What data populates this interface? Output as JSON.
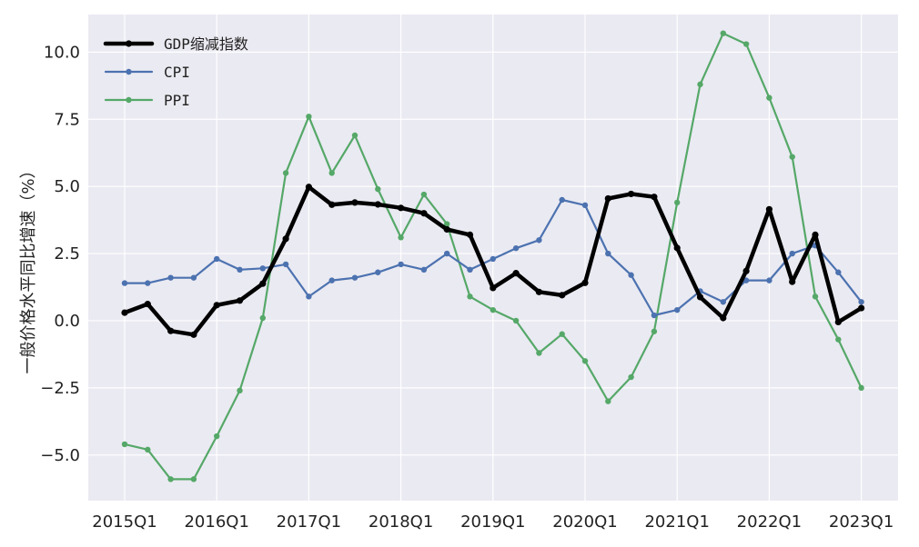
{
  "chart_data": {
    "type": "line",
    "title": "",
    "xlabel": "",
    "ylabel": "一般价格水平同比增速（%）",
    "x": [
      "2015Q1",
      "2015Q2",
      "2015Q3",
      "2015Q4",
      "2016Q1",
      "2016Q2",
      "2016Q3",
      "2016Q4",
      "2017Q1",
      "2017Q2",
      "2017Q3",
      "2017Q4",
      "2018Q1",
      "2018Q2",
      "2018Q3",
      "2018Q4",
      "2019Q1",
      "2019Q2",
      "2019Q3",
      "2019Q4",
      "2020Q1",
      "2020Q2",
      "2020Q3",
      "2020Q4",
      "2021Q1",
      "2021Q2",
      "2021Q3",
      "2021Q4",
      "2022Q1",
      "2022Q2",
      "2022Q3",
      "2022Q4",
      "2023Q1"
    ],
    "x_tick_labels": [
      "2015Q1",
      "2016Q1",
      "2017Q1",
      "2018Q1",
      "2019Q1",
      "2020Q1",
      "2021Q1",
      "2022Q1",
      "2023Q1"
    ],
    "ylim": [
      -6.7,
      11.4
    ],
    "y_ticks": [
      -5.0,
      -2.5,
      0.0,
      2.5,
      5.0,
      7.5,
      10.0
    ],
    "y_tick_labels": [
      "−5.0",
      "−2.5",
      "0.0",
      "2.5",
      "5.0",
      "7.5",
      "10.0"
    ],
    "grid": true,
    "legend_position": "top-left",
    "series": [
      {
        "name": "GDP缩减指数",
        "color": "#000000",
        "values": [
          0.3,
          0.62,
          -0.38,
          -0.52,
          0.58,
          0.75,
          1.38,
          3.05,
          4.98,
          4.32,
          4.4,
          4.33,
          4.2,
          4.0,
          3.4,
          3.2,
          1.22,
          1.77,
          1.07,
          0.95,
          1.41,
          4.55,
          4.72,
          4.61,
          2.71,
          0.88,
          0.1,
          1.85,
          4.15,
          1.45,
          3.2,
          -0.05,
          0.47
        ]
      },
      {
        "name": "CPI",
        "color": "#4c72b0",
        "values": [
          1.4,
          1.4,
          1.6,
          1.6,
          2.3,
          1.9,
          1.95,
          2.1,
          0.9,
          1.5,
          1.6,
          1.8,
          2.1,
          1.9,
          2.5,
          1.9,
          2.3,
          2.7,
          3.0,
          4.5,
          4.3,
          2.5,
          1.7,
          0.2,
          0.4,
          1.1,
          0.7,
          1.5,
          1.5,
          2.5,
          2.8,
          1.8,
          0.7
        ]
      },
      {
        "name": "PPI",
        "color": "#55a868",
        "values": [
          -4.6,
          -4.8,
          -5.9,
          -5.9,
          -4.3,
          -2.6,
          0.1,
          5.5,
          7.6,
          5.5,
          6.9,
          4.9,
          3.1,
          4.7,
          3.6,
          0.9,
          0.4,
          0.0,
          -1.2,
          -0.5,
          -1.5,
          -3.0,
          -2.1,
          -0.4,
          4.4,
          8.8,
          10.7,
          10.3,
          8.3,
          6.1,
          0.9,
          -0.7,
          -2.5
        ]
      }
    ]
  }
}
